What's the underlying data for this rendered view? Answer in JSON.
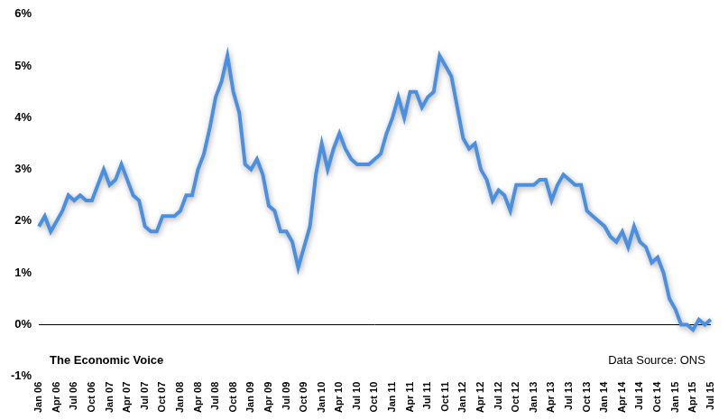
{
  "chart_data": {
    "type": "line",
    "annotations": [
      "The Economic Voice",
      "Data Source: ONS"
    ],
    "categories": [
      "Jan 06",
      null,
      null,
      "Apr 06",
      null,
      null,
      "Jul 06",
      null,
      null,
      "Oct 06",
      null,
      null,
      "Jan 07",
      null,
      null,
      "Apr 07",
      null,
      null,
      "Jul 07",
      null,
      null,
      "Oct 07",
      null,
      null,
      "Jan 08",
      null,
      null,
      "Apr 08",
      null,
      null,
      "Jul 08",
      null,
      null,
      "Oct 08",
      null,
      null,
      "Jan 09",
      null,
      null,
      "Apr 09",
      null,
      null,
      "Jul 09",
      null,
      null,
      "Oct 09",
      null,
      null,
      "Jan 10",
      null,
      null,
      "Apr 10",
      null,
      null,
      "Jul 10",
      null,
      null,
      "Oct 10",
      null,
      null,
      "Jan 11",
      null,
      null,
      "Apr 11",
      null,
      null,
      "Jul 11",
      null,
      null,
      "Oct 11",
      null,
      null,
      "Jan 12",
      null,
      null,
      "Apr 12",
      null,
      null,
      "Jul 12",
      null,
      null,
      "Oct 12",
      null,
      null,
      "Jan 13",
      null,
      null,
      "Apr 13",
      null,
      null,
      "Jul 13",
      null,
      null,
      "Oct 13",
      null,
      null,
      "Jan 14",
      null,
      null,
      "Apr 14",
      null,
      null,
      "Jul 14",
      null,
      null,
      "Oct 14",
      null,
      null,
      "Jan 15",
      null,
      null,
      "Apr 15",
      null,
      null,
      "Jul 15"
    ],
    "values": [
      1.9,
      2.1,
      1.8,
      2.0,
      2.2,
      2.5,
      2.4,
      2.5,
      2.4,
      2.4,
      2.7,
      3.0,
      2.7,
      2.8,
      3.1,
      2.8,
      2.5,
      2.4,
      1.9,
      1.8,
      1.8,
      2.1,
      2.1,
      2.1,
      2.2,
      2.5,
      2.5,
      3.0,
      3.3,
      3.8,
      4.4,
      4.7,
      5.2,
      4.5,
      4.1,
      3.1,
      3.0,
      3.2,
      2.9,
      2.3,
      2.2,
      1.8,
      1.8,
      1.6,
      1.1,
      1.5,
      1.9,
      2.9,
      3.5,
      3.0,
      3.4,
      3.7,
      3.4,
      3.2,
      3.1,
      3.1,
      3.1,
      3.2,
      3.3,
      3.7,
      4.0,
      4.4,
      4.0,
      4.5,
      4.5,
      4.2,
      4.4,
      4.5,
      5.2,
      5.0,
      4.8,
      4.2,
      3.6,
      3.4,
      3.5,
      3.0,
      2.8,
      2.4,
      2.6,
      2.5,
      2.2,
      2.7,
      2.7,
      2.7,
      2.7,
      2.8,
      2.8,
      2.4,
      2.7,
      2.9,
      2.8,
      2.7,
      2.7,
      2.2,
      2.1,
      2.0,
      1.9,
      1.7,
      1.6,
      1.8,
      1.5,
      1.9,
      1.6,
      1.5,
      1.2,
      1.3,
      1.0,
      0.5,
      0.3,
      0.0,
      0.0,
      -0.1,
      0.1,
      0.0,
      0.1
    ],
    "color": "#4a90e2",
    "ylim": [
      -1,
      6
    ],
    "yticks": [
      {
        "value": -1,
        "label": "-1%"
      },
      {
        "value": 0,
        "label": "0%"
      },
      {
        "value": 1,
        "label": "1%"
      },
      {
        "value": 2,
        "label": "2%"
      },
      {
        "value": 3,
        "label": "3%"
      },
      {
        "value": 4,
        "label": "4%"
      },
      {
        "value": 5,
        "label": "5%"
      },
      {
        "value": 6,
        "label": "6%"
      }
    ],
    "grid": false
  }
}
